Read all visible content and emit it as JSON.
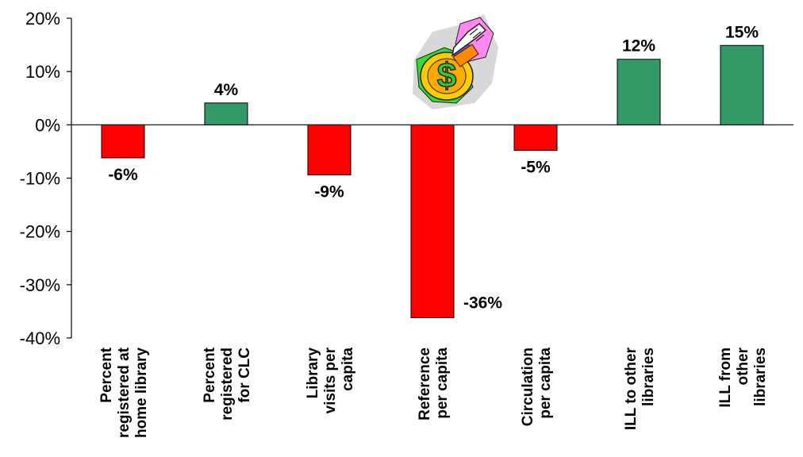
{
  "chart_data": {
    "type": "bar",
    "title": "",
    "xlabel": "",
    "ylabel": "",
    "ylim": [
      -40,
      20
    ],
    "yticks": [
      "20%",
      "10%",
      "0%",
      "-10%",
      "-20%",
      "-30%",
      "-40%"
    ],
    "ytick_values": [
      20,
      10,
      0,
      -10,
      -20,
      -30,
      -40
    ],
    "grid": false,
    "legend": "none",
    "categories": [
      [
        "Percent",
        "registered at",
        "home library"
      ],
      [
        "Percent",
        "registered",
        "for CLC"
      ],
      [
        "Library",
        "visits per",
        "capita"
      ],
      [
        "Reference",
        "per capita"
      ],
      [
        "Circulation",
        "per capita"
      ],
      [
        "ILL to other",
        "libraries"
      ],
      [
        "ILL from",
        "other",
        "libraries"
      ]
    ],
    "values": [
      -6.2,
      4.1,
      -9.4,
      -36.2,
      -4.8,
      12.3,
      14.9
    ],
    "data_labels": [
      "-6%",
      "4%",
      "-9%",
      "-36%",
      "-5%",
      "12%",
      "15%"
    ],
    "colors": {
      "positive": "#339966",
      "negative": "#ff0000",
      "outline": "#000000"
    },
    "decoration_icon": "money-hand-clipart-icon"
  }
}
